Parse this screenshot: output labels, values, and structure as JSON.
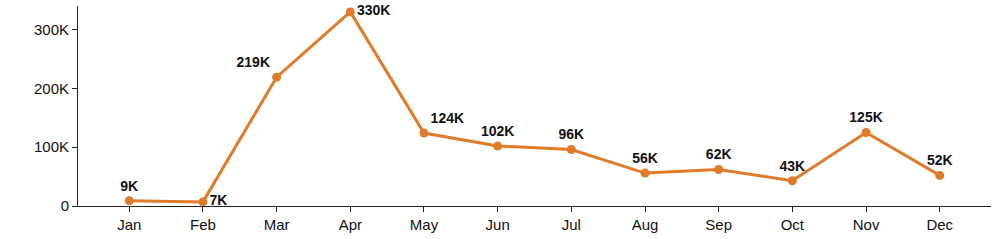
{
  "chart_data": {
    "type": "line",
    "categories": [
      "Jan",
      "Feb",
      "Mar",
      "Apr",
      "May",
      "Jun",
      "Jul",
      "Aug",
      "Sep",
      "Oct",
      "Nov",
      "Dec"
    ],
    "values": [
      9000,
      7000,
      219000,
      330000,
      124000,
      102000,
      96000,
      56000,
      62000,
      43000,
      125000,
      52000
    ],
    "value_labels": [
      "9K",
      "7K",
      "219K",
      "330K",
      "124K",
      "102K",
      "96K",
      "56K",
      "62K",
      "43K",
      "125K",
      "52K"
    ],
    "color": "#e07b2a",
    "marker": "circle",
    "ylim": [
      0,
      340000
    ],
    "yticks": [
      0,
      {
        "value": 100000,
        "label": "100K"
      },
      {
        "value": 200000,
        "label": "200K"
      },
      {
        "value": 300000,
        "label": "300K"
      }
    ],
    "grid": false,
    "data_labels": true
  }
}
